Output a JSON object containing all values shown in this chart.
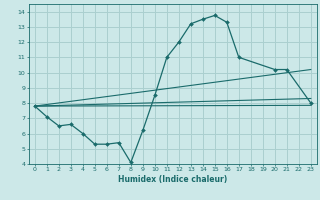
{
  "xlabel": "Humidex (Indice chaleur)",
  "xlim": [
    -0.5,
    23.5
  ],
  "ylim": [
    4,
    14.5
  ],
  "bg_color": "#cce8e8",
  "line_color": "#1a6b6b",
  "grid_color": "#aacfcf",
  "main_series": {
    "x": [
      0,
      1,
      2,
      3,
      4,
      5,
      6,
      7,
      8,
      9,
      10,
      11,
      12,
      13,
      14,
      15,
      16,
      17,
      20,
      21,
      23
    ],
    "y": [
      7.8,
      7.1,
      6.5,
      6.6,
      6.0,
      5.3,
      5.3,
      5.4,
      4.1,
      6.2,
      8.5,
      11.0,
      12.0,
      13.2,
      13.5,
      13.75,
      13.3,
      11.0,
      10.2,
      10.2,
      8.0
    ]
  },
  "trend_lines": [
    {
      "x": [
        0,
        23
      ],
      "y": [
        7.8,
        7.85
      ]
    },
    {
      "x": [
        0,
        23
      ],
      "y": [
        7.8,
        8.3
      ]
    },
    {
      "x": [
        0,
        23
      ],
      "y": [
        7.8,
        10.2
      ]
    }
  ],
  "xticks": [
    0,
    1,
    2,
    3,
    4,
    5,
    6,
    7,
    8,
    9,
    10,
    11,
    12,
    13,
    14,
    15,
    16,
    17,
    18,
    19,
    20,
    21,
    22,
    23
  ],
  "yticks": [
    4,
    5,
    6,
    7,
    8,
    9,
    10,
    11,
    12,
    13,
    14
  ]
}
